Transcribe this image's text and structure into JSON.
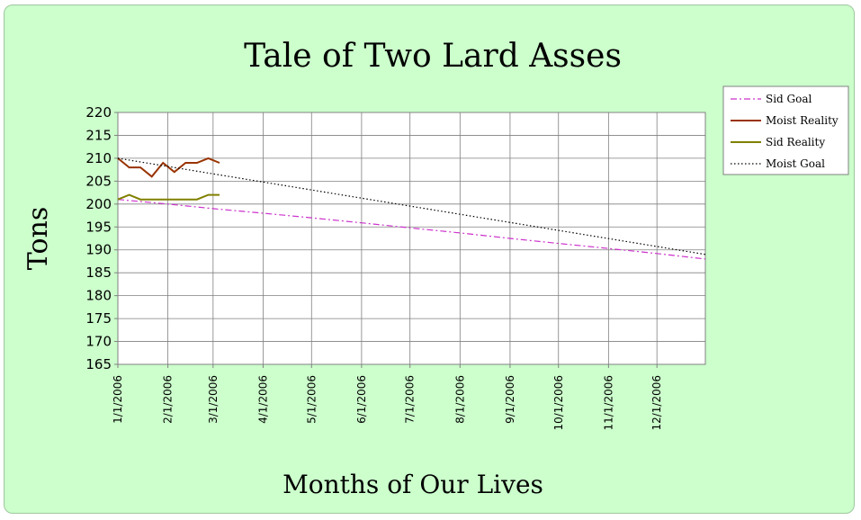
{
  "chart_data": {
    "type": "line",
    "title": "Tale of Two Lard Asses",
    "xlabel": "Months of Our Lives",
    "ylabel": "Tons",
    "ylim": [
      165,
      220
    ],
    "yticks": [
      165,
      170,
      175,
      180,
      185,
      190,
      195,
      200,
      205,
      210,
      215,
      220
    ],
    "xlim": [
      "1/1/2006",
      "12/31/2006"
    ],
    "xticks": [
      "1/1/2006",
      "2/1/2006",
      "3/1/2006",
      "4/1/2006",
      "5/1/2006",
      "6/1/2006",
      "7/1/2006",
      "8/1/2006",
      "9/1/2006",
      "10/1/2006",
      "11/1/2006",
      "12/1/2006"
    ],
    "grid": true,
    "legend_position": "right",
    "series": [
      {
        "name": "Sid Goal",
        "color": "#cc33cc",
        "dash": "dashdot",
        "x": [
          "1/1/2006",
          "2/1/2006",
          "3/1/2006",
          "4/1/2006",
          "5/1/2006",
          "6/1/2006",
          "7/1/2006",
          "8/1/2006",
          "9/1/2006",
          "10/1/2006",
          "11/1/2006",
          "12/1/2006",
          "12/31/2006"
        ],
        "values": [
          201,
          200,
          199,
          198,
          197,
          195.9,
          194.8,
          193.7,
          192.5,
          191.4,
          190.3,
          189.2,
          188
        ]
      },
      {
        "name": "Moist Reality",
        "color": "#993300",
        "dash": "solid",
        "x": [
          "1/1/2006",
          "1/8/2006",
          "1/15/2006",
          "1/22/2006",
          "1/29/2006",
          "2/5/2006",
          "2/12/2006",
          "2/19/2006",
          "2/26/2006",
          "3/5/2006"
        ],
        "values": [
          210,
          208,
          208,
          206,
          209,
          207,
          209,
          209,
          210,
          209
        ]
      },
      {
        "name": "Sid Reality",
        "color": "#808000",
        "dash": "solid",
        "x": [
          "1/1/2006",
          "1/8/2006",
          "1/15/2006",
          "1/22/2006",
          "1/29/2006",
          "2/5/2006",
          "2/12/2006",
          "2/19/2006",
          "2/26/2006",
          "3/5/2006"
        ],
        "values": [
          201,
          202,
          201,
          201,
          201,
          201,
          201,
          201,
          202,
          202
        ]
      },
      {
        "name": "Moist Goal",
        "color": "#000000",
        "dash": "dotted",
        "x": [
          "1/1/2006",
          "12/31/2006"
        ],
        "values": [
          210,
          189
        ]
      }
    ]
  }
}
